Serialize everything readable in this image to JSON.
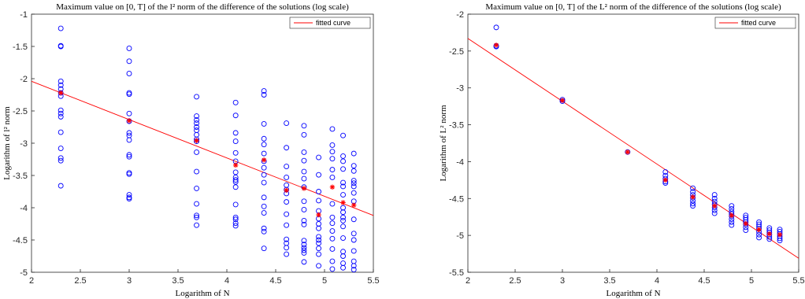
{
  "colors": {
    "points": "#0000ff",
    "fit": "#ff0000",
    "medians": "#ff0000",
    "axis": "#262626"
  },
  "chart_data": [
    {
      "type": "scatter",
      "title": "Maximum value on [0, T] of the l² norm of the difference of the solutions (log scale)",
      "xlabel": "Logarithm of N",
      "ylabel": "Logarithm of l² norm",
      "xlim": [
        2,
        5.5
      ],
      "ylim": [
        -5,
        -1
      ],
      "xticks": [
        "2",
        "2.5",
        "3",
        "3.5",
        "4",
        "4.5",
        "5",
        "5.5"
      ],
      "yticks": [
        "-1",
        "-1.5",
        "-2",
        "-2.5",
        "-3",
        "-3.5",
        "-4",
        "-4.5",
        "-5"
      ],
      "grid": false,
      "legend": {
        "position": "top-right",
        "entries": [
          "fitted curve"
        ]
      },
      "scatter_points": [
        [
          2.3,
          -1.22
        ],
        [
          2.3,
          -1.49
        ],
        [
          2.3,
          -1.5
        ],
        [
          2.3,
          -2.04
        ],
        [
          2.3,
          -2.1
        ],
        [
          2.3,
          -2.16
        ],
        [
          2.3,
          -2.22
        ],
        [
          2.3,
          -2.27
        ],
        [
          2.3,
          -2.49
        ],
        [
          2.3,
          -2.54
        ],
        [
          2.3,
          -2.59
        ],
        [
          2.3,
          -2.83
        ],
        [
          2.3,
          -3.08
        ],
        [
          2.3,
          -3.23
        ],
        [
          2.3,
          -3.27
        ],
        [
          2.3,
          -3.66
        ],
        [
          3.0,
          -1.53
        ],
        [
          3.0,
          -1.73
        ],
        [
          3.0,
          -1.92
        ],
        [
          3.0,
          -2.22
        ],
        [
          3.0,
          -2.24
        ],
        [
          3.0,
          -2.54
        ],
        [
          3.0,
          -2.66
        ],
        [
          3.0,
          -2.84
        ],
        [
          3.0,
          -2.88
        ],
        [
          3.0,
          -2.95
        ],
        [
          3.0,
          -3.18
        ],
        [
          3.0,
          -3.21
        ],
        [
          3.0,
          -3.46
        ],
        [
          3.0,
          -3.48
        ],
        [
          3.0,
          -3.8
        ],
        [
          3.0,
          -3.84
        ],
        [
          3.0,
          -3.86
        ],
        [
          3.69,
          -2.28
        ],
        [
          3.69,
          -2.58
        ],
        [
          3.69,
          -2.64
        ],
        [
          3.69,
          -2.69
        ],
        [
          3.69,
          -2.75
        ],
        [
          3.69,
          -2.8
        ],
        [
          3.69,
          -2.87
        ],
        [
          3.69,
          -2.94
        ],
        [
          3.69,
          -2.97
        ],
        [
          3.69,
          -3.14
        ],
        [
          3.69,
          -3.44
        ],
        [
          3.69,
          -3.7
        ],
        [
          3.69,
          -3.94
        ],
        [
          3.69,
          -4.12
        ],
        [
          3.69,
          -4.15
        ],
        [
          3.69,
          -4.27
        ],
        [
          4.09,
          -2.37
        ],
        [
          4.09,
          -2.57
        ],
        [
          4.09,
          -2.84
        ],
        [
          4.09,
          -2.97
        ],
        [
          4.09,
          -3.15
        ],
        [
          4.09,
          -3.28
        ],
        [
          4.09,
          -3.45
        ],
        [
          4.09,
          -3.53
        ],
        [
          4.09,
          -3.57
        ],
        [
          4.09,
          -3.6
        ],
        [
          4.09,
          -3.68
        ],
        [
          4.09,
          -3.95
        ],
        [
          4.09,
          -4.15
        ],
        [
          4.09,
          -4.18
        ],
        [
          4.09,
          -4.24
        ],
        [
          4.09,
          -4.28
        ],
        [
          4.38,
          -2.19
        ],
        [
          4.38,
          -2.25
        ],
        [
          4.38,
          -2.7
        ],
        [
          4.38,
          -2.93
        ],
        [
          4.38,
          -3.02
        ],
        [
          4.38,
          -3.16
        ],
        [
          4.38,
          -3.28
        ],
        [
          4.38,
          -3.38
        ],
        [
          4.38,
          -3.49
        ],
        [
          4.38,
          -3.61
        ],
        [
          4.38,
          -3.84
        ],
        [
          4.38,
          -3.98
        ],
        [
          4.38,
          -4.08
        ],
        [
          4.38,
          -4.32
        ],
        [
          4.38,
          -4.37
        ],
        [
          4.38,
          -4.63
        ],
        [
          4.61,
          -2.69
        ],
        [
          4.61,
          -3.07
        ],
        [
          4.61,
          -3.36
        ],
        [
          4.61,
          -3.53
        ],
        [
          4.61,
          -3.65
        ],
        [
          4.61,
          -3.72
        ],
        [
          4.61,
          -3.78
        ],
        [
          4.61,
          -3.91
        ],
        [
          4.61,
          -4.1
        ],
        [
          4.61,
          -4.27
        ],
        [
          4.61,
          -4.49
        ],
        [
          4.61,
          -4.55
        ],
        [
          4.61,
          -4.62
        ],
        [
          4.61,
          -4.72
        ],
        [
          4.79,
          -2.73
        ],
        [
          4.79,
          -2.87
        ],
        [
          4.79,
          -3.14
        ],
        [
          4.79,
          -3.27
        ],
        [
          4.79,
          -3.44
        ],
        [
          4.79,
          -3.55
        ],
        [
          4.79,
          -3.68
        ],
        [
          4.79,
          -3.9
        ],
        [
          4.79,
          -4.03
        ],
        [
          4.79,
          -4.2
        ],
        [
          4.79,
          -4.26
        ],
        [
          4.79,
          -4.51
        ],
        [
          4.79,
          -4.57
        ],
        [
          4.79,
          -4.62
        ],
        [
          4.79,
          -4.66
        ],
        [
          4.79,
          -4.7
        ],
        [
          4.79,
          -4.84
        ],
        [
          4.94,
          -3.22
        ],
        [
          4.94,
          -3.49
        ],
        [
          4.94,
          -3.75
        ],
        [
          4.94,
          -3.89
        ],
        [
          4.94,
          -4.05
        ],
        [
          4.94,
          -4.17
        ],
        [
          4.94,
          -4.25
        ],
        [
          4.94,
          -4.32
        ],
        [
          4.94,
          -4.45
        ],
        [
          4.94,
          -4.5
        ],
        [
          4.94,
          -4.55
        ],
        [
          4.94,
          -4.63
        ],
        [
          4.94,
          -4.72
        ],
        [
          4.94,
          -4.9
        ],
        [
          5.08,
          -2.78
        ],
        [
          5.08,
          -3.03
        ],
        [
          5.08,
          -3.13
        ],
        [
          5.08,
          -3.24
        ],
        [
          5.08,
          -3.41
        ],
        [
          5.08,
          -3.53
        ],
        [
          5.08,
          -3.94
        ],
        [
          5.08,
          -4.15
        ],
        [
          5.08,
          -4.24
        ],
        [
          5.08,
          -4.36
        ],
        [
          5.08,
          -4.48
        ],
        [
          5.08,
          -4.64
        ],
        [
          5.08,
          -4.83
        ],
        [
          5.08,
          -4.95
        ],
        [
          5.19,
          -2.88
        ],
        [
          5.19,
          -3.2
        ],
        [
          5.19,
          -3.28
        ],
        [
          5.19,
          -3.4
        ],
        [
          5.19,
          -3.61
        ],
        [
          5.19,
          -3.67
        ],
        [
          5.19,
          -3.8
        ],
        [
          5.19,
          -4.0
        ],
        [
          5.19,
          -4.07
        ],
        [
          5.19,
          -4.15
        ],
        [
          5.19,
          -4.2
        ],
        [
          5.19,
          -4.29
        ],
        [
          5.19,
          -4.47
        ],
        [
          5.19,
          -4.68
        ],
        [
          5.19,
          -4.75
        ],
        [
          5.19,
          -4.86
        ],
        [
          5.19,
          -4.93
        ],
        [
          5.3,
          -3.16
        ],
        [
          5.3,
          -3.35
        ],
        [
          5.3,
          -3.43
        ],
        [
          5.3,
          -3.58
        ],
        [
          5.3,
          -3.62
        ],
        [
          5.3,
          -3.67
        ],
        [
          5.3,
          -3.77
        ],
        [
          5.3,
          -3.9
        ],
        [
          5.3,
          -4.18
        ],
        [
          5.3,
          -4.4
        ],
        [
          5.3,
          -4.5
        ],
        [
          5.3,
          -4.67
        ],
        [
          5.3,
          -4.83
        ],
        [
          5.3,
          -4.9
        ],
        [
          5.3,
          -4.96
        ]
      ],
      "median_points": [
        [
          2.3,
          -2.22
        ],
        [
          3.0,
          -2.65
        ],
        [
          3.69,
          -2.96
        ],
        [
          4.09,
          -3.34
        ],
        [
          4.38,
          -3.26
        ],
        [
          4.61,
          -3.73
        ],
        [
          4.79,
          -3.7
        ],
        [
          4.94,
          -4.11
        ],
        [
          5.08,
          -3.68
        ],
        [
          5.19,
          -3.92
        ],
        [
          5.3,
          -3.96
        ]
      ],
      "fitted_curve": {
        "name": "fitted curve",
        "x": [
          2,
          5.5
        ],
        "y": [
          -2.04,
          -4.12
        ]
      }
    },
    {
      "type": "scatter",
      "title": "Maximum value on [0, T] of the L² norm of the difference of the solutions (log scale)",
      "xlabel": "Logarithm of N",
      "ylabel": "Logarithm of L² norm",
      "xlim": [
        2,
        5.5
      ],
      "ylim": [
        -5.5,
        -2
      ],
      "xticks": [
        "2",
        "2.5",
        "3",
        "3.5",
        "4",
        "4.5",
        "5",
        "5.5"
      ],
      "yticks": [
        "-2",
        "-2.5",
        "-3",
        "-3.5",
        "-4",
        "-4.5",
        "-5",
        "-5.5"
      ],
      "grid": false,
      "legend": {
        "position": "top-right",
        "entries": [
          "fitted curve"
        ]
      },
      "scatter_points": [
        [
          2.3,
          -2.18
        ],
        [
          2.3,
          -2.43
        ],
        [
          2.3,
          -2.44
        ],
        [
          3.0,
          -3.16
        ],
        [
          3.0,
          -3.18
        ],
        [
          3.69,
          -3.87
        ],
        [
          4.09,
          -4.14
        ],
        [
          4.09,
          -4.19
        ],
        [
          4.09,
          -4.23
        ],
        [
          4.09,
          -4.27
        ],
        [
          4.09,
          -4.29
        ],
        [
          4.38,
          -4.36
        ],
        [
          4.38,
          -4.41
        ],
        [
          4.38,
          -4.45
        ],
        [
          4.38,
          -4.49
        ],
        [
          4.38,
          -4.53
        ],
        [
          4.38,
          -4.57
        ],
        [
          4.38,
          -4.6
        ],
        [
          4.61,
          -4.45
        ],
        [
          4.61,
          -4.5
        ],
        [
          4.61,
          -4.54
        ],
        [
          4.61,
          -4.58
        ],
        [
          4.61,
          -4.62
        ],
        [
          4.61,
          -4.66
        ],
        [
          4.61,
          -4.7
        ],
        [
          4.79,
          -4.6
        ],
        [
          4.79,
          -4.64
        ],
        [
          4.79,
          -4.68
        ],
        [
          4.79,
          -4.71
        ],
        [
          4.79,
          -4.74
        ],
        [
          4.79,
          -4.78
        ],
        [
          4.79,
          -4.82
        ],
        [
          4.79,
          -4.86
        ],
        [
          4.94,
          -4.73
        ],
        [
          4.94,
          -4.76
        ],
        [
          4.94,
          -4.79
        ],
        [
          4.94,
          -4.82
        ],
        [
          4.94,
          -4.85
        ],
        [
          4.94,
          -4.89
        ],
        [
          4.94,
          -4.93
        ],
        [
          5.08,
          -4.82
        ],
        [
          5.08,
          -4.85
        ],
        [
          5.08,
          -4.88
        ],
        [
          5.08,
          -4.91
        ],
        [
          5.08,
          -4.95
        ],
        [
          5.08,
          -4.99
        ],
        [
          5.08,
          -5.03
        ],
        [
          5.19,
          -4.9
        ],
        [
          5.19,
          -4.93
        ],
        [
          5.19,
          -4.96
        ],
        [
          5.19,
          -4.99
        ],
        [
          5.19,
          -5.02
        ],
        [
          5.19,
          -5.05
        ],
        [
          5.3,
          -4.92
        ],
        [
          5.3,
          -4.95
        ],
        [
          5.3,
          -4.98
        ],
        [
          5.3,
          -5.01
        ],
        [
          5.3,
          -5.04
        ],
        [
          5.3,
          -5.07
        ]
      ],
      "median_points": [
        [
          2.3,
          -2.42
        ],
        [
          3.0,
          -3.17
        ],
        [
          3.69,
          -3.87
        ],
        [
          4.09,
          -4.25
        ],
        [
          4.38,
          -4.48
        ],
        [
          4.61,
          -4.6
        ],
        [
          4.79,
          -4.73
        ],
        [
          4.94,
          -4.84
        ],
        [
          5.08,
          -4.92
        ],
        [
          5.19,
          -4.98
        ],
        [
          5.3,
          -4.99
        ]
      ],
      "fitted_curve": {
        "name": "fitted curve",
        "x": [
          2,
          5.5
        ],
        "y": [
          -2.33,
          -5.31
        ]
      }
    }
  ]
}
